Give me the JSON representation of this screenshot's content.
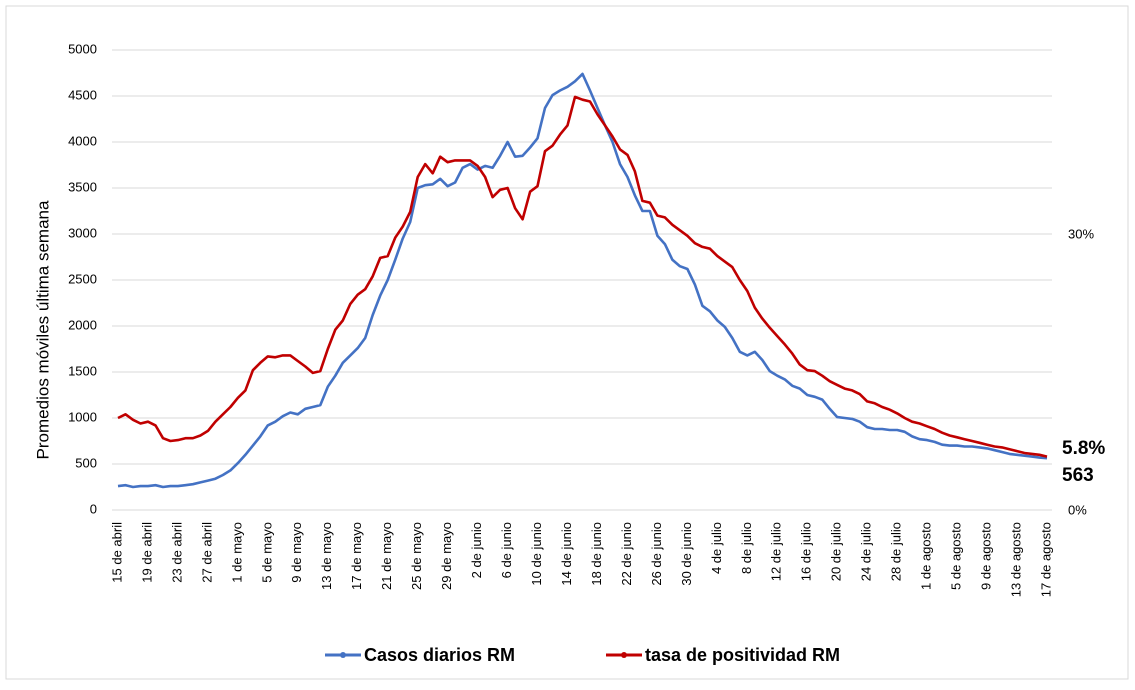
{
  "chart_data": {
    "type": "line",
    "y_label": "Promedios móviles última semana",
    "categories": [
      "15 de abril",
      null,
      null,
      null,
      "19 de abril",
      null,
      null,
      null,
      "23 de abril",
      null,
      null,
      null,
      "27 de abril",
      null,
      null,
      null,
      "1 de mayo",
      null,
      null,
      null,
      "5 de mayo",
      null,
      null,
      null,
      "9 de mayo",
      null,
      null,
      null,
      "13 de mayo",
      null,
      null,
      null,
      "17 de mayo",
      null,
      null,
      null,
      "21 de mayo",
      null,
      null,
      null,
      "25 de mayo",
      null,
      null,
      null,
      "29 de mayo",
      null,
      null,
      null,
      "2 de junio",
      null,
      null,
      null,
      "6 de junio",
      null,
      null,
      null,
      "10 de junio",
      null,
      null,
      null,
      "14 de junio",
      null,
      null,
      null,
      "18 de junio",
      null,
      null,
      null,
      "22 de junio",
      null,
      null,
      null,
      "26 de junio",
      null,
      null,
      null,
      "30 de junio",
      null,
      null,
      null,
      "4 de julio",
      null,
      null,
      null,
      "8 de julio",
      null,
      null,
      null,
      "12 de julio",
      null,
      null,
      null,
      "16 de julio",
      null,
      null,
      null,
      "20 de julio",
      null,
      null,
      null,
      "24 de julio",
      null,
      null,
      null,
      "28 de julio",
      null,
      null,
      null,
      "1 de agosto",
      null,
      null,
      null,
      "5 de agosto",
      null,
      null,
      null,
      "9 de agosto",
      null,
      null,
      null,
      "13 de agosto",
      null,
      null,
      null,
      "17 de agosto"
    ],
    "series": [
      {
        "name": "Casos diarios RM",
        "color": "#4472c4",
        "values": [
          260,
          270,
          250,
          260,
          260,
          270,
          250,
          260,
          260,
          270,
          280,
          300,
          320,
          340,
          380,
          430,
          510,
          600,
          700,
          800,
          920,
          960,
          1020,
          1060,
          1040,
          1100,
          1120,
          1140,
          1340,
          1460,
          1600,
          1680,
          1760,
          1870,
          2120,
          2330,
          2500,
          2720,
          2950,
          3130,
          3500,
          3530,
          3540,
          3600,
          3520,
          3560,
          3720,
          3760,
          3700,
          3740,
          3720,
          3850,
          4000,
          3840,
          3850,
          3940,
          4040,
          4370,
          4510,
          4560,
          4600,
          4660,
          4740,
          4560,
          4370,
          4180,
          4000,
          3760,
          3620,
          3420,
          3250,
          3250,
          2980,
          2890,
          2720,
          2650,
          2620,
          2450,
          2220,
          2160,
          2060,
          1990,
          1870,
          1720,
          1680,
          1720,
          1630,
          1510,
          1460,
          1420,
          1350,
          1320,
          1250,
          1230,
          1200,
          1100,
          1010,
          1000,
          990,
          960,
          900,
          880,
          880,
          870,
          870,
          850,
          800,
          770,
          760,
          740,
          710,
          700,
          700,
          690,
          690,
          680,
          670,
          650,
          630,
          610,
          600,
          590,
          580,
          570,
          563
        ]
      },
      {
        "name": "tasa de positividad RM",
        "color": "#c00000",
        "axis": "y2",
        "values": [
          10.0,
          10.4,
          9.8,
          9.4,
          9.6,
          9.2,
          7.8,
          7.5,
          7.6,
          7.8,
          7.8,
          8.1,
          8.6,
          9.6,
          10.4,
          11.2,
          12.2,
          13.0,
          15.2,
          16.0,
          16.7,
          16.6,
          16.8,
          16.8,
          16.2,
          15.6,
          14.9,
          15.1,
          17.5,
          19.6,
          20.6,
          22.4,
          23.4,
          24.0,
          25.4,
          27.4,
          27.6,
          29.6,
          30.8,
          32.4,
          36.2,
          37.6,
          36.6,
          38.4,
          37.8,
          38.0,
          38.0,
          38.0,
          37.4,
          36.2,
          34.0,
          34.8,
          35.0,
          32.8,
          31.6,
          34.6,
          35.2,
          39.0,
          39.6,
          40.8,
          41.8,
          44.9,
          44.6,
          44.4,
          43.0,
          41.8,
          40.6,
          39.2,
          38.6,
          36.8,
          33.6,
          33.4,
          32.0,
          31.8,
          31.0,
          30.4,
          29.8,
          29.0,
          28.6,
          28.4,
          27.6,
          27.0,
          26.4,
          25.0,
          23.8,
          22.0,
          20.8,
          19.8,
          18.9,
          18.0,
          17.0,
          15.8,
          15.2,
          15.1,
          14.6,
          14.0,
          13.6,
          13.2,
          13.0,
          12.6,
          11.8,
          11.6,
          11.2,
          10.9,
          10.5,
          10.0,
          9.6,
          9.4,
          9.1,
          8.8,
          8.4,
          8.1,
          7.9,
          7.7,
          7.5,
          7.3,
          7.1,
          6.9,
          6.8,
          6.6,
          6.4,
          6.2,
          6.1,
          6.0,
          5.8
        ],
        "value_labels": [
          null,
          null,
          null,
          null,
          null,
          null,
          null,
          null,
          null,
          null,
          null,
          null,
          null,
          null,
          null,
          null,
          null,
          null,
          null,
          null,
          null,
          null,
          null,
          null,
          null,
          null,
          null,
          null,
          null,
          null,
          null,
          null,
          null,
          null,
          null,
          null,
          null,
          null,
          null,
          null,
          null,
          null,
          null,
          null,
          null,
          null,
          null,
          null,
          null,
          null,
          null,
          null,
          null,
          null,
          null,
          null,
          null,
          null,
          null,
          null,
          null,
          null,
          null,
          null,
          null,
          null,
          null,
          null,
          null,
          null,
          null,
          null,
          null,
          null,
          null,
          null,
          null,
          null,
          null,
          null,
          null,
          null,
          null,
          null,
          null,
          null,
          null,
          null,
          null,
          null,
          null,
          null,
          null,
          null,
          null,
          null,
          null,
          null,
          null,
          null,
          null,
          null,
          null,
          null,
          null,
          null,
          null,
          null,
          null,
          null,
          null,
          null,
          null,
          null,
          null,
          null,
          null,
          null,
          null,
          null,
          null,
          null,
          null,
          null,
          "5.8%"
        ]
      }
    ],
    "ylim": [
      0,
      5000
    ],
    "yticks": [
      0,
      500,
      1000,
      1500,
      2000,
      2500,
      3000,
      3500,
      4000,
      4500,
      5000
    ],
    "y2lim": [
      0,
      50
    ],
    "y2ticks": [
      {
        "value": 0,
        "label": "0%"
      },
      {
        "value": 30,
        "label": "30%"
      }
    ],
    "grid": true,
    "legend": "bottom"
  }
}
